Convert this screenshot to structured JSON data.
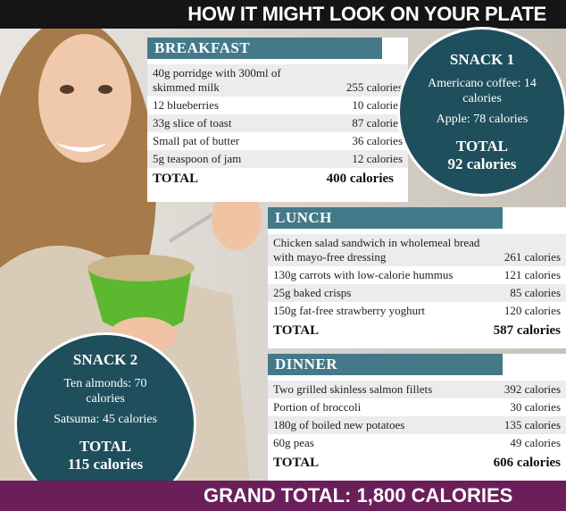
{
  "header": {
    "title": "HOW IT MIGHT LOOK ON YOUR PLATE"
  },
  "breakfast": {
    "title": "BREAKFAST",
    "items": [
      {
        "name": "40g porridge with 300ml of skimmed milk",
        "calories": "255 calories"
      },
      {
        "name": "12 blueberries",
        "calories": "10 calories"
      },
      {
        "name": "33g slice of toast",
        "calories": "87 calories"
      },
      {
        "name": "Small pat of butter",
        "calories": "36 calories"
      },
      {
        "name": "5g teaspoon of jam",
        "calories": "12 calories"
      }
    ],
    "total_label": "TOTAL",
    "total": "400 calories"
  },
  "snack1": {
    "title": "SNACK 1",
    "items": [
      "Americano coffee: 14 calories",
      "Apple: 78 calories"
    ],
    "total_label": "TOTAL",
    "total": "92 calories"
  },
  "lunch": {
    "title": "LUNCH",
    "items": [
      {
        "name": "Chicken salad sandwich in wholemeal bread with mayo-free dressing",
        "calories": "261 calories"
      },
      {
        "name": "130g carrots with low-calorie hummus",
        "calories": "121 calories"
      },
      {
        "name": "25g baked crisps",
        "calories": "85 calories"
      },
      {
        "name": "150g fat-free strawberry yoghurt",
        "calories": "120 calories"
      }
    ],
    "total_label": "TOTAL",
    "total": "587 calories"
  },
  "dinner": {
    "title": "DINNER",
    "items": [
      {
        "name": "Two grilled skinless salmon fillets",
        "calories": "392 calories"
      },
      {
        "name": "Portion of broccoli",
        "calories": "30 calories"
      },
      {
        "name": "180g of boiled new potatoes",
        "calories": "135 calories"
      },
      {
        "name": "60g peas",
        "calories": "49 calories"
      }
    ],
    "total_label": "TOTAL",
    "total": "606 calories"
  },
  "snack2": {
    "title": "SNACK 2",
    "items": [
      "Ten almonds: 70 calories",
      "Satsuma: 45 calories"
    ],
    "total_label": "TOTAL",
    "total": "115 calories"
  },
  "grand_total": "GRAND TOTAL: 1,800 CALORIES"
}
